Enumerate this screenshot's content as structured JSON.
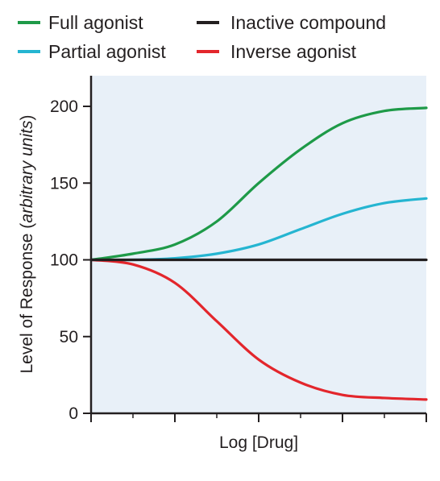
{
  "chart_data": {
    "type": "line",
    "title": "",
    "xlabel": "Log [Drug]",
    "ylabel": {
      "main": "Level of Response (",
      "italic": "arbitrary units",
      "close": ")"
    },
    "ylim": [
      0,
      200
    ],
    "yticks": [
      "0",
      "50",
      "100",
      "150",
      "200"
    ],
    "xlim": [
      0,
      8
    ],
    "x_tick_count": 9,
    "grid": false,
    "plot_background": "#e8f0f8",
    "legend_position": "top",
    "series": [
      {
        "name": "Full agonist",
        "color": "#1e9a48",
        "x": [
          0,
          1,
          2,
          3,
          4,
          5,
          6,
          7,
          8
        ],
        "y": [
          100,
          104,
          110,
          125,
          150,
          172,
          189,
          197,
          199
        ]
      },
      {
        "name": "Inactive compound",
        "color": "#231f20",
        "x": [
          0,
          1,
          2,
          3,
          4,
          5,
          6,
          7,
          8
        ],
        "y": [
          100,
          100,
          100,
          100,
          100,
          100,
          100,
          100,
          100
        ]
      },
      {
        "name": "Partial agonist",
        "color": "#25b5d1",
        "x": [
          0,
          1,
          2,
          3,
          4,
          5,
          6,
          7,
          8
        ],
        "y": [
          100,
          100,
          101,
          104,
          110,
          120,
          130,
          137,
          140
        ]
      },
      {
        "name": "Inverse agonist",
        "color": "#e3262c",
        "x": [
          0,
          1,
          2,
          3,
          4,
          5,
          6,
          7,
          8
        ],
        "y": [
          100,
          97,
          85,
          60,
          35,
          20,
          12,
          10,
          9
        ]
      }
    ]
  }
}
